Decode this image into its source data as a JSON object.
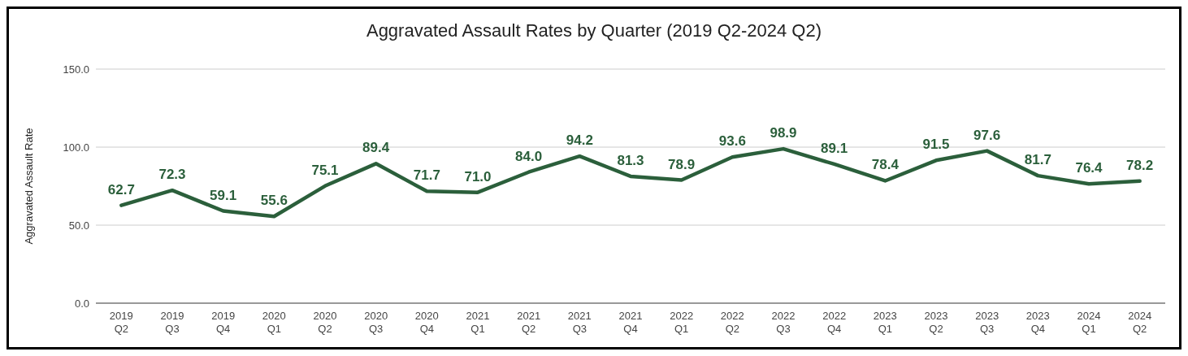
{
  "chart_data": {
    "type": "line",
    "title": "Aggravated Assault Rates by Quarter (2019 Q2-2024 Q2)",
    "ylabel": "Aggravated Assault Rate",
    "categories": [
      "2019 Q2",
      "2019 Q3",
      "2019 Q4",
      "2020 Q1",
      "2020 Q2",
      "2020 Q3",
      "2020 Q4",
      "2021 Q1",
      "2021 Q2",
      "2021 Q3",
      "2021 Q4",
      "2022 Q1",
      "2022 Q2",
      "2022 Q3",
      "2022 Q4",
      "2023 Q1",
      "2023 Q2",
      "2023 Q3",
      "2023 Q4",
      "2024 Q1",
      "2024 Q2"
    ],
    "series": [
      {
        "color": "#2b5f3b",
        "values": [
          62.7,
          72.3,
          59.1,
          55.6,
          75.1,
          89.4,
          71.7,
          71.0,
          84.0,
          94.2,
          81.3,
          78.9,
          93.6,
          98.9,
          89.1,
          78.4,
          91.5,
          97.6,
          81.7,
          76.4,
          78.2
        ],
        "value_labels": [
          "62.7",
          "72.3",
          "59.1",
          "55.6",
          "75.1",
          "89.4",
          "71.7",
          "71.0",
          "84.0",
          "94.2",
          "81.3",
          "78.9",
          "93.6",
          "98.9",
          "89.1",
          "78.4",
          "91.5",
          "97.6",
          "81.7",
          "76.4",
          "78.2"
        ]
      }
    ],
    "ylim": [
      0,
      150
    ],
    "yticks": [
      {
        "value": 0,
        "label": "0.0"
      },
      {
        "value": 50,
        "label": "50.0"
      },
      {
        "value": 100,
        "label": "100.0"
      },
      {
        "value": 150,
        "label": "150.0"
      }
    ],
    "grid": "y",
    "marker": "none",
    "line_style": "solid"
  }
}
